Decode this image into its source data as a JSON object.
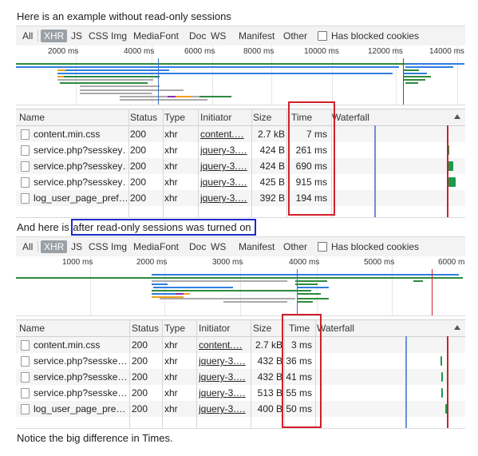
{
  "texts": {
    "intro": "Here is an example without read-only sessions",
    "middle_prefix": "And here is ",
    "middle_highlight": "after read-only sessions was turned on",
    "outro": "Notice the big difference in Times."
  },
  "filter": {
    "types": [
      "All",
      "XHR",
      "JS",
      "CSS",
      "Img",
      "Media",
      "Font",
      "Doc",
      "WS",
      "Manifest",
      "Other"
    ],
    "active": "XHR",
    "blocked_label": "Has blocked cookies"
  },
  "columns": {
    "name": "Name",
    "status": "Status",
    "type": "Type",
    "initiator": "Initiator",
    "size": "Size",
    "time": "Time",
    "waterfall": "Waterfall"
  },
  "colors": {
    "highlight_box": "#1a2bc8",
    "time_box": "#d0202a",
    "waterfall_bar": "#1a9a4a"
  },
  "panel1": {
    "ticks": [
      "2000 ms",
      "4000 ms",
      "6000 ms",
      "8000 ms",
      "10000 ms",
      "12000 ms",
      "14000 ms"
    ],
    "rows": [
      {
        "name": "content.min.css",
        "status": "200",
        "type": "xhr",
        "initiator": "content.…",
        "size": "2.7 kB",
        "time": "7 ms"
      },
      {
        "name": "service.php?sesskey…",
        "status": "200",
        "type": "xhr",
        "initiator": "jquery-3.…",
        "size": "424 B",
        "time": "261 ms"
      },
      {
        "name": "service.php?sesskey…",
        "status": "200",
        "type": "xhr",
        "initiator": "jquery-3.…",
        "size": "424 B",
        "time": "690 ms"
      },
      {
        "name": "service.php?sesskey…",
        "status": "200",
        "type": "xhr",
        "initiator": "jquery-3.…",
        "size": "425 B",
        "time": "915 ms"
      },
      {
        "name": "log_user_page_pref…",
        "status": "200",
        "type": "xhr",
        "initiator": "jquery-3.…",
        "size": "392 B",
        "time": "194 ms"
      }
    ]
  },
  "panel2": {
    "ticks": [
      "1000 ms",
      "2000 ms",
      "3000 ms",
      "4000 ms",
      "5000 ms",
      "6000 ms"
    ],
    "rows": [
      {
        "name": "content.min.css",
        "status": "200",
        "type": "xhr",
        "initiator": "content.…",
        "size": "2.7 kB",
        "time": "3 ms"
      },
      {
        "name": "service.php?sesske…",
        "status": "200",
        "type": "xhr",
        "initiator": "jquery-3.…",
        "size": "432 B",
        "time": "36 ms"
      },
      {
        "name": "service.php?sesske…",
        "status": "200",
        "type": "xhr",
        "initiator": "jquery-3.…",
        "size": "432 B",
        "time": "41 ms"
      },
      {
        "name": "service.php?sesske…",
        "status": "200",
        "type": "xhr",
        "initiator": "jquery-3.…",
        "size": "513 B",
        "time": "55 ms"
      },
      {
        "name": "log_user_page_pre…",
        "status": "200",
        "type": "xhr",
        "initiator": "jquery-3.…",
        "size": "400 B",
        "time": "50 ms"
      }
    ]
  }
}
